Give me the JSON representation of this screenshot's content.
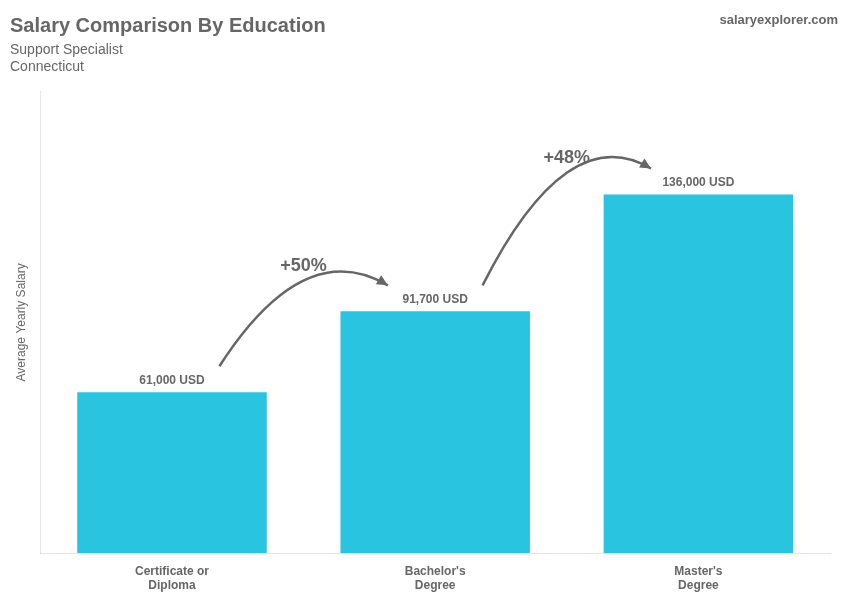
{
  "chart_data": {
    "type": "bar",
    "title": "Salary Comparison By Education",
    "subtitle": [
      "Support Specialist",
      "Connecticut"
    ],
    "watermark": [
      "salary",
      "explorer",
      ".com"
    ],
    "categories": [
      "Certificate or\nDiploma",
      "Bachelor's\nDegree",
      "Master's\nDegree"
    ],
    "values": [
      61000,
      91700,
      136000
    ],
    "value_labels": [
      "61,000 USD",
      "91,700 USD",
      "136,000 USD"
    ],
    "data_labels": true,
    "annotations": [
      "+50%",
      "+48%"
    ],
    "ylabel": "Average Yearly Salary",
    "color": "#29c4e0",
    "ylim": [
      0,
      175000
    ],
    "grid": false,
    "tick_labels": "x"
  }
}
